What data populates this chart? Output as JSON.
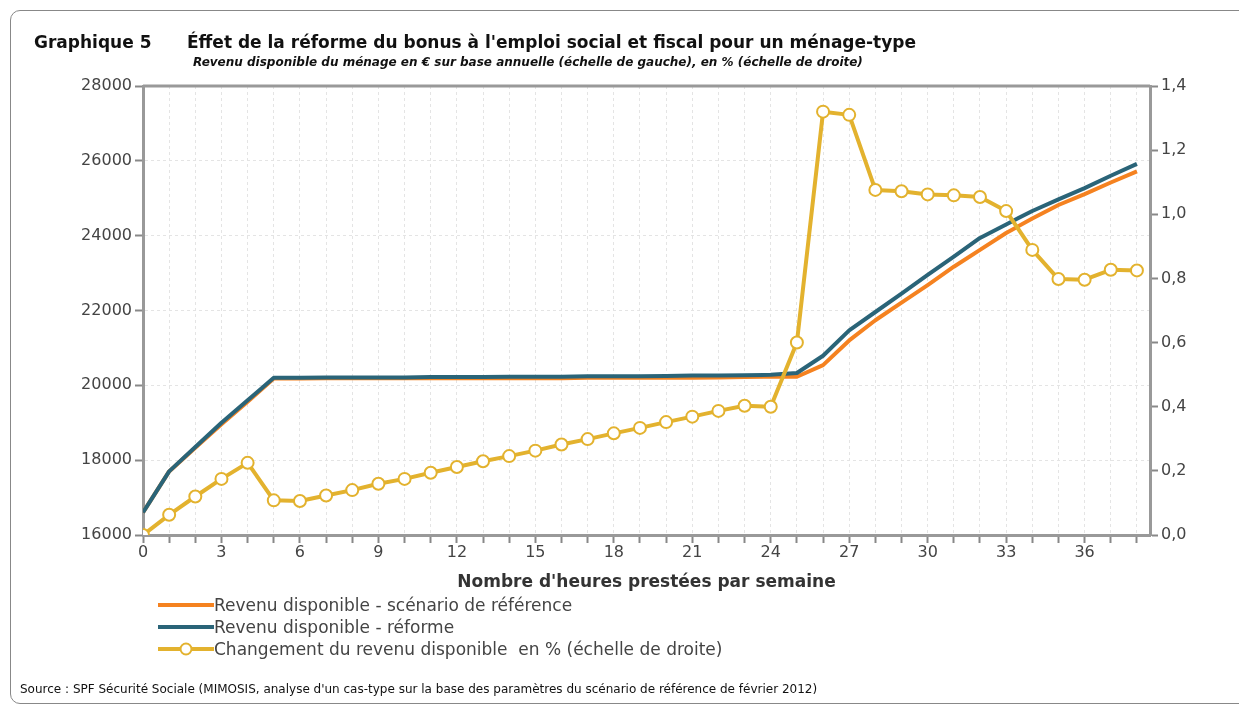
{
  "chart_data": {
    "type": "line",
    "title": "Graphique 5      Éffet de la réforme du bonus à l'emploi social et fiscal pour un ménage-type",
    "subtitle": "Revenu disponible du ménage en € sur base annuelle (échelle de gauche), en % (échelle de droite)",
    "xlabel": "Nombre d'heures prestées par semaine",
    "x": [
      0,
      1,
      2,
      3,
      4,
      5,
      6,
      7,
      8,
      9,
      10,
      11,
      12,
      13,
      14,
      15,
      16,
      17,
      18,
      19,
      20,
      21,
      22,
      23,
      24,
      25,
      26,
      27,
      28,
      29,
      30,
      31,
      32,
      33,
      34,
      35,
      36,
      37,
      38
    ],
    "series": [
      {
        "name": "Revenu disponible - scénario de référence",
        "color": "#f58220",
        "marker": "none",
        "values": [
          16600,
          17700,
          18330,
          18960,
          19560,
          20180,
          20180,
          20190,
          20190,
          20190,
          20190,
          20190,
          20190,
          20190,
          20190,
          20190,
          20190,
          20200,
          20200,
          20200,
          20200,
          20200,
          20210,
          20220,
          20230,
          20230,
          20540,
          21200,
          21740,
          22210,
          22680,
          23170,
          23620,
          24070,
          24460,
          24820,
          25110,
          25420,
          25720
        ]
      },
      {
        "name": "Revenu disponible - réforme",
        "color": "#2a6478",
        "marker": "none",
        "values": [
          16600,
          17700,
          18350,
          19000,
          19600,
          20200,
          20200,
          20210,
          20210,
          20210,
          20210,
          20220,
          20220,
          20220,
          20230,
          20230,
          20230,
          20240,
          20240,
          20240,
          20250,
          20260,
          20260,
          20270,
          20280,
          20330,
          20790,
          21470,
          21960,
          22450,
          22950,
          23440,
          23940,
          24300,
          24660,
          24970,
          25270,
          25600,
          25920
        ]
      },
      {
        "name": "Changement du revenu disponible  en % (échelle de droite)",
        "color": "#e3b22e",
        "marker": "circle",
        "axis": "y2",
        "values": [
          0.0,
          0.063,
          0.12,
          0.175,
          0.225,
          0.108,
          0.106,
          0.123,
          0.14,
          0.16,
          0.175,
          0.194,
          0.212,
          0.23,
          0.246,
          0.263,
          0.282,
          0.299,
          0.317,
          0.334,
          0.352,
          0.369,
          0.387,
          0.403,
          0.4,
          0.6,
          1.32,
          1.31,
          1.076,
          1.072,
          1.062,
          1.059,
          1.054,
          1.01,
          0.889,
          0.798,
          0.796,
          0.827,
          0.825
        ]
      }
    ],
    "xlim": [
      0,
      38.5
    ],
    "xticks": [
      0,
      {
        "value": 1,
        "label": null
      },
      {
        "value": 2,
        "label": null
      },
      3,
      {
        "value": 4,
        "label": null
      },
      {
        "value": 5,
        "label": null
      },
      6,
      {
        "value": 7,
        "label": null
      },
      {
        "value": 8,
        "label": null
      },
      9,
      {
        "value": 10,
        "label": null
      },
      {
        "value": 11,
        "label": null
      },
      12,
      {
        "value": 13,
        "label": null
      },
      {
        "value": 14,
        "label": null
      },
      15,
      {
        "value": 16,
        "label": null
      },
      {
        "value": 17,
        "label": null
      },
      18,
      {
        "value": 19,
        "label": null
      },
      {
        "value": 20,
        "label": null
      },
      21,
      {
        "value": 22,
        "label": null
      },
      {
        "value": 23,
        "label": null
      },
      24,
      {
        "value": 25,
        "label": null
      },
      {
        "value": 26,
        "label": null
      },
      27,
      {
        "value": 28,
        "label": null
      },
      {
        "value": 29,
        "label": null
      },
      30,
      {
        "value": 31,
        "label": null
      },
      {
        "value": 32,
        "label": null
      },
      33,
      {
        "value": 34,
        "label": null
      },
      {
        "value": 35,
        "label": null
      },
      36,
      {
        "value": 37,
        "label": null
      },
      {
        "value": 38,
        "label": null
      }
    ],
    "ylim": [
      16000,
      28000
    ],
    "yticks": [
      16000,
      18000,
      20000,
      22000,
      24000,
      26000,
      28000
    ],
    "y2lim": [
      0,
      1.4
    ],
    "y2ticks": [
      {
        "value": 0,
        "label": "0,0"
      },
      {
        "value": 0.2,
        "label": "0,2"
      },
      {
        "value": 0.4,
        "label": "0,4"
      },
      {
        "value": 0.6,
        "label": "0,6"
      },
      {
        "value": 0.8,
        "label": "0,8"
      },
      {
        "value": 1.0,
        "label": "1,0"
      },
      {
        "value": 1.2,
        "label": "1,2"
      },
      {
        "value": 1.4,
        "label": "1,4"
      }
    ],
    "grid": true,
    "legend": "bottom",
    "line_style": "solid",
    "annotations": [
      "Source : SPF Sécurité Sociale (MIMOSIS, analyse d'un cas-type sur la base des paramètres du scénario de référence de février 2012)"
    ]
  }
}
